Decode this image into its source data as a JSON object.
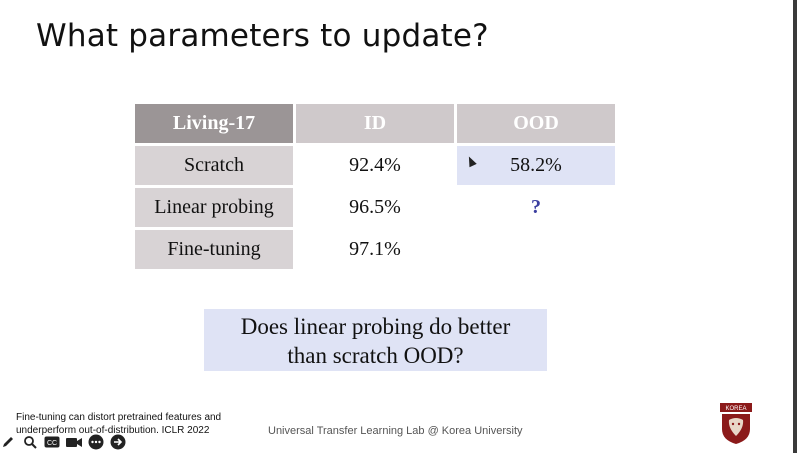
{
  "slide": {
    "title": "What parameters to update?"
  },
  "table": {
    "headers": [
      "Living-17",
      "ID",
      "OOD"
    ],
    "rows": [
      {
        "label": "Scratch",
        "id": "92.4%",
        "ood": "58.2%"
      },
      {
        "label": "Linear probing",
        "id": "96.5%",
        "ood": "?"
      },
      {
        "label": "Fine-tuning",
        "id": "97.1%",
        "ood": ""
      }
    ]
  },
  "callout": {
    "line1": "Does linear probing do better",
    "line2": "than scratch OOD?"
  },
  "footer": {
    "citation_line1": "Fine-tuning can distort pretrained features and",
    "citation_line2": "underperform out-of-distribution. ICLR 2022",
    "lab": "Universal Transfer Learning Lab @ Korea University",
    "logo_text": "KOREA"
  },
  "toolbar": {
    "icons": [
      "pen-icon",
      "search-icon",
      "captions-icon",
      "camera-icon",
      "more-icon",
      "next-icon"
    ]
  },
  "colors": {
    "header_dark": "#9b9596",
    "header_light": "#cfc9cb",
    "highlight": "#dfe3f5",
    "question": "#3b3fa0",
    "logo": "#8b1a1a"
  }
}
